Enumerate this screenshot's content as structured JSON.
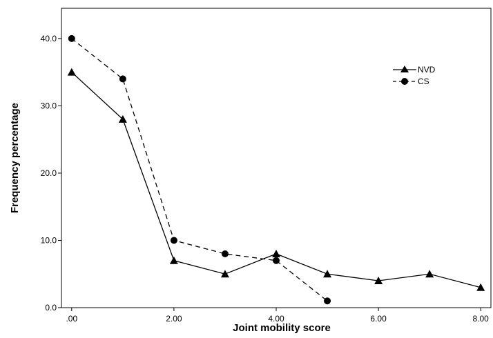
{
  "chart_data": {
    "type": "line",
    "title": "",
    "xlabel": "Joint mobility score",
    "ylabel": "Frequency percentage",
    "xlim": [
      -0.2,
      8.2
    ],
    "ylim": [
      0,
      44.5
    ],
    "x_ticks": [
      0,
      2,
      4,
      6,
      8
    ],
    "x_tick_labels": [
      ".00",
      "2.00",
      "4.00",
      "6.00",
      "8.00"
    ],
    "y_ticks": [
      0,
      10,
      20,
      30,
      40
    ],
    "y_tick_labels": [
      "0.0",
      "10.0",
      "20.0",
      "30.0",
      "40.0"
    ],
    "grid": false,
    "legend_position": "top-right",
    "series": [
      {
        "name": "NVD",
        "marker": "triangle",
        "line_style": "solid",
        "color": "#000000",
        "x": [
          0,
          1,
          2,
          3,
          4,
          5,
          6,
          7,
          8
        ],
        "y": [
          35,
          28,
          7,
          5,
          8,
          5,
          4,
          5,
          3
        ]
      },
      {
        "name": "CS",
        "marker": "circle",
        "line_style": "dashed",
        "color": "#000000",
        "x": [
          0,
          1,
          2,
          3,
          4,
          5
        ],
        "y": [
          40,
          34,
          10,
          8,
          7,
          1
        ]
      }
    ]
  }
}
